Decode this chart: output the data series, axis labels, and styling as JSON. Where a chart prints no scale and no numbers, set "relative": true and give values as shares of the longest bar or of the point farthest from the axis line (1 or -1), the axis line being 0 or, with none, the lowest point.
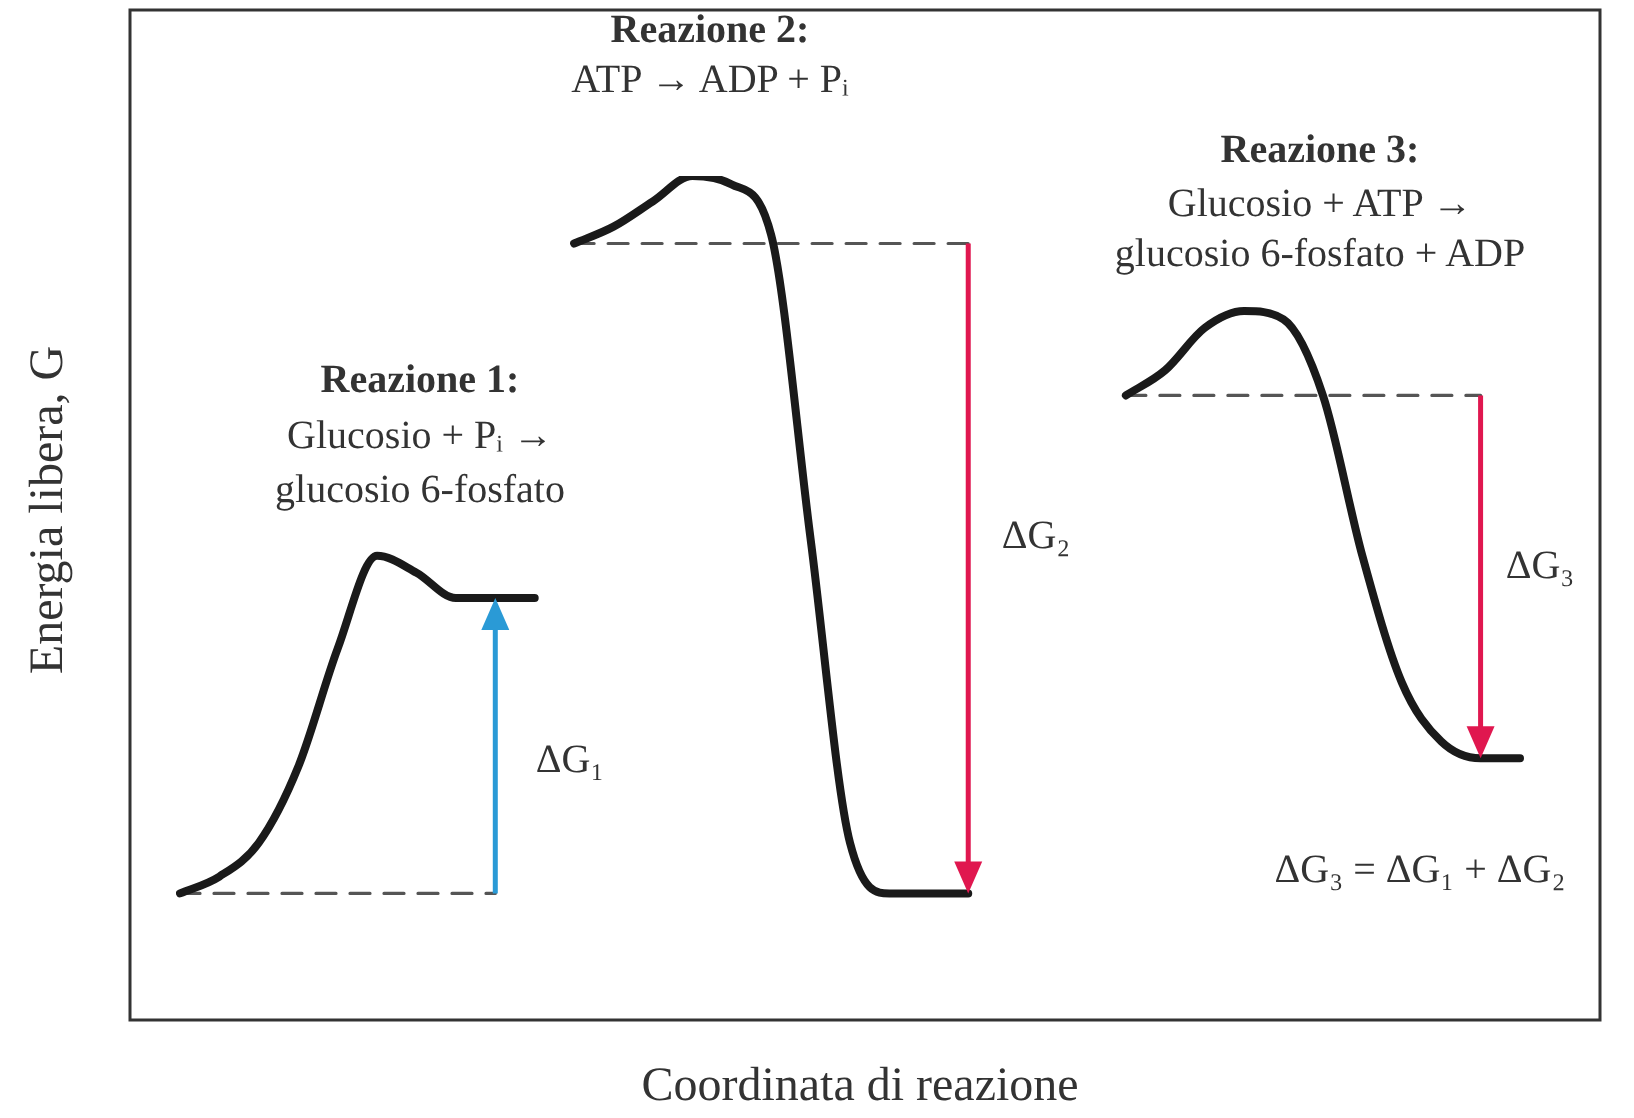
{
  "chart_data": {
    "type": "line",
    "relative": true,
    "xlabel": "Coordinata di reazione",
    "ylabel": "Energia libera, G",
    "categories": [
      null,
      null,
      null,
      null,
      null,
      null,
      null,
      null,
      null,
      null,
      null,
      null,
      null,
      null,
      null,
      null,
      null,
      null,
      null,
      null,
      null,
      null,
      null,
      null,
      null,
      null,
      null,
      null,
      null,
      null,
      null,
      null,
      null,
      null,
      null
    ],
    "series": [
      {
        "color": "#1a1a1a",
        "line_style": "solid",
        "values": [
          0.15,
          0.17,
          0.21,
          0.3,
          0.44,
          0.55,
          0.53,
          0.5,
          0.5,
          0.5,
          null,
          null,
          null,
          null,
          null,
          null,
          null,
          null,
          null,
          null,
          null,
          null,
          null,
          null,
          null,
          null,
          null,
          null,
          null,
          null,
          null,
          null,
          null,
          null,
          null
        ]
      },
      {
        "color": "#1a1a1a",
        "line_style": "solid",
        "values": [
          null,
          null,
          null,
          null,
          null,
          null,
          null,
          null,
          null,
          null,
          0.92,
          0.94,
          0.97,
          1.0,
          0.99,
          0.93,
          0.57,
          0.21,
          0.15,
          0.15,
          0.15,
          null,
          null,
          null,
          null,
          null,
          null,
          null,
          null,
          null,
          null,
          null,
          null,
          null,
          null
        ]
      },
      {
        "color": "#1a1a1a",
        "line_style": "solid",
        "values": [
          null,
          null,
          null,
          null,
          null,
          null,
          null,
          null,
          null,
          null,
          null,
          null,
          null,
          null,
          null,
          null,
          null,
          null,
          null,
          null,
          null,
          null,
          null,
          null,
          0.74,
          0.77,
          0.82,
          0.84,
          0.83,
          0.74,
          0.55,
          0.4,
          0.33,
          0.31,
          0.31
        ]
      },
      {
        "color": "#555555",
        "line_style": "dashed",
        "values": [
          0.15,
          0.15,
          0.15,
          0.15,
          0.15,
          0.15,
          0.15,
          0.15,
          0.15,
          null,
          null,
          null,
          null,
          null,
          null,
          null,
          null,
          null,
          null,
          null,
          null,
          null,
          null,
          null,
          null,
          null,
          null,
          null,
          null,
          null,
          null,
          null,
          null,
          null,
          null
        ]
      },
      {
        "color": "#555555",
        "line_style": "dashed",
        "values": [
          null,
          null,
          null,
          null,
          null,
          null,
          null,
          null,
          null,
          null,
          0.92,
          0.92,
          0.92,
          0.92,
          0.92,
          0.92,
          0.92,
          0.92,
          0.92,
          0.92,
          0.92,
          null,
          null,
          null,
          null,
          null,
          null,
          null,
          null,
          null,
          null,
          null,
          null,
          null,
          null
        ]
      },
      {
        "color": "#555555",
        "line_style": "dashed",
        "values": [
          null,
          null,
          null,
          null,
          null,
          null,
          null,
          null,
          null,
          null,
          null,
          null,
          null,
          null,
          null,
          null,
          null,
          null,
          null,
          null,
          null,
          null,
          null,
          null,
          0.74,
          0.74,
          0.74,
          0.74,
          0.74,
          0.74,
          0.74,
          0.74,
          0.74,
          0.74,
          null
        ]
      }
    ],
    "annotations": [
      "Reazione 1:",
      "Glucosio + Pᵢ →",
      "glucosio 6-fosfato",
      "Reazione 2:",
      "ATP → ADP + Pᵢ",
      "Reazione 3:",
      "Glucosio + ATP →",
      "glucosio 6-fosfato + ADP",
      "ΔG₁",
      "ΔG₂",
      "ΔG₃",
      "ΔG₃ = ΔG₁ + ΔG₂"
    ],
    "legend": false,
    "marker": "none",
    "tick_labels": false
  }
}
